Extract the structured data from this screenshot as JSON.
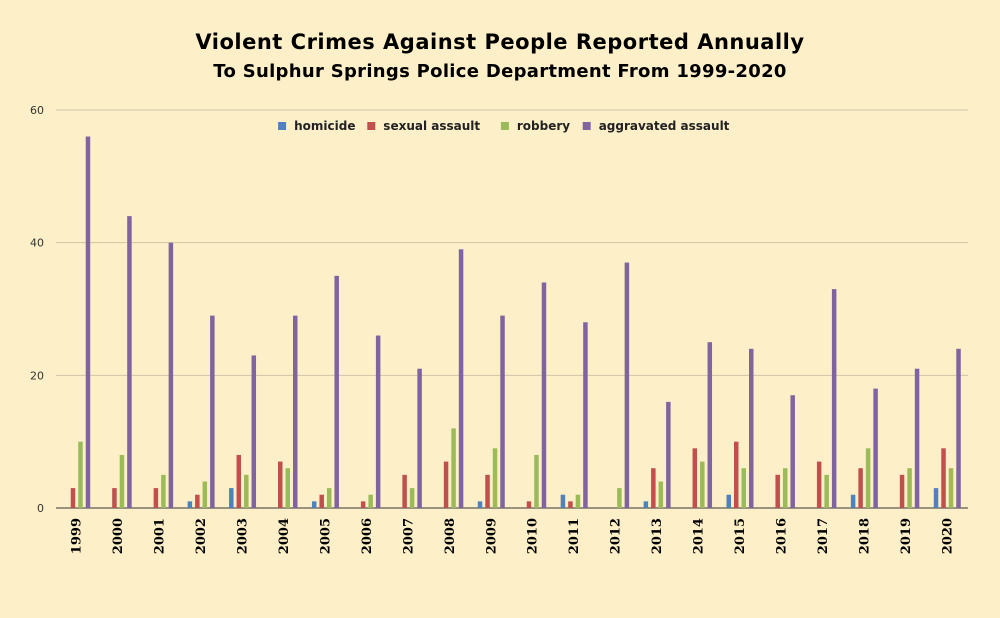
{
  "chart_data": {
    "type": "bar",
    "title": "Violent Crimes Against People Reported Annually",
    "subtitle": "To Sulphur Springs Police Department From 1999-2020",
    "xlabel": "",
    "ylabel": "",
    "ylim": [
      0,
      60
    ],
    "yticks": [
      "0",
      "20",
      "40",
      "60"
    ],
    "grid": true,
    "legend_position": "top-center",
    "categories": [
      "1999",
      "2000",
      "2001",
      "2002",
      "2003",
      "2004",
      "2005",
      "2006",
      "2007",
      "2008",
      "2009",
      "2010",
      "2011",
      "2012",
      "2013",
      "2014",
      "2015",
      "2016",
      "2017",
      "2018",
      "2019",
      "2020"
    ],
    "series": [
      {
        "name": "homicide",
        "color": "#4f81bd",
        "values": [
          0,
          0,
          0,
          1,
          3,
          0,
          1,
          0,
          0,
          0,
          1,
          0,
          2,
          0,
          1,
          0,
          2,
          0,
          0,
          2,
          0,
          3
        ]
      },
      {
        "name": "sexual assault",
        "color": "#c0504d",
        "values": [
          3,
          3,
          3,
          2,
          8,
          7,
          2,
          1,
          5,
          7,
          5,
          1,
          1,
          0,
          6,
          9,
          10,
          5,
          7,
          6,
          5,
          9
        ]
      },
      {
        "name": "robbery",
        "color": "#9bbb59",
        "values": [
          10,
          8,
          5,
          4,
          5,
          6,
          3,
          2,
          3,
          12,
          9,
          8,
          2,
          3,
          4,
          7,
          6,
          6,
          5,
          9,
          6,
          6
        ]
      },
      {
        "name": "aggravated assault",
        "color": "#8064a2",
        "values": [
          56,
          44,
          40,
          29,
          23,
          29,
          35,
          26,
          21,
          39,
          29,
          34,
          28,
          37,
          16,
          25,
          24,
          17,
          33,
          18,
          21,
          24
        ]
      }
    ]
  }
}
